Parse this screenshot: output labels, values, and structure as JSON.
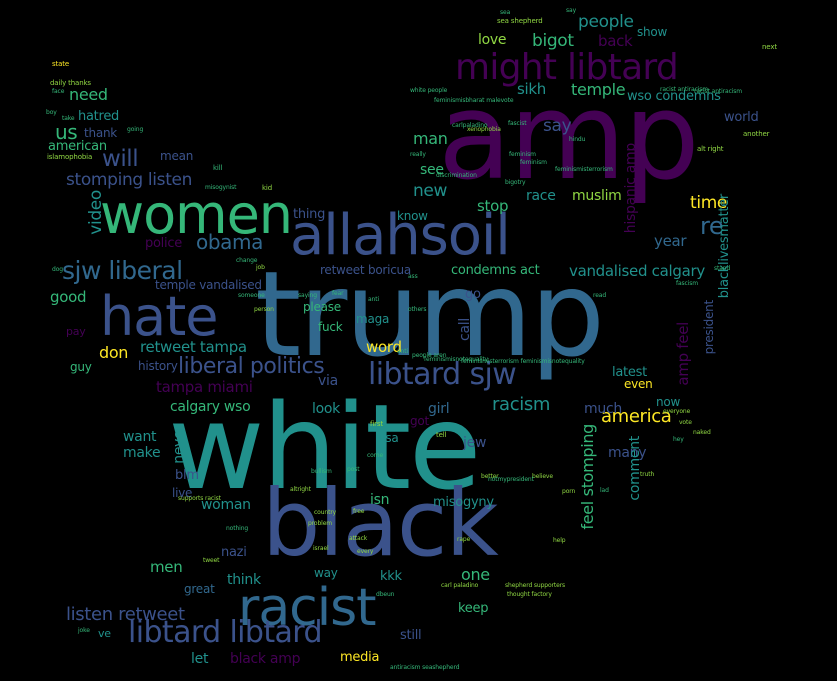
{
  "palette": {
    "background": "#000000",
    "purple": "#440154",
    "indigo": "#3b528b",
    "blue": "#31688e",
    "teal": "#21918c",
    "green": "#35b779",
    "lime": "#90d743",
    "yellow": "#fde725"
  },
  "cloud": {
    "words": [
      {
        "text": "amp",
        "color": "#440154"
      },
      {
        "text": "trump",
        "color": "#31688e"
      },
      {
        "text": "white",
        "color": "#21918c"
      },
      {
        "text": "black",
        "color": "#3b528b"
      },
      {
        "text": "racist",
        "color": "#31688e"
      },
      {
        "text": "allahsoil",
        "color": "#3b528b"
      },
      {
        "text": "women",
        "color": "#35b779"
      },
      {
        "text": "hate",
        "color": "#3b528b"
      },
      {
        "text": "might libtard",
        "color": "#440154"
      },
      {
        "text": "libtard libtard",
        "color": "#3b528b"
      },
      {
        "text": "sjw liberal",
        "color": "#31688e"
      },
      {
        "text": "libtard sjw",
        "color": "#3b528b"
      },
      {
        "text": "liberal politics",
        "color": "#3b528b"
      },
      {
        "text": "obama",
        "color": "#31688e"
      },
      {
        "text": "will",
        "color": "#3b528b"
      },
      {
        "text": "us",
        "color": "#35b779"
      },
      {
        "text": "stomping listen",
        "color": "#3b528b"
      },
      {
        "text": "listen retweet",
        "color": "#3b528b"
      },
      {
        "text": "retweet tampa",
        "color": "#21918c"
      },
      {
        "text": "tampa miami",
        "color": "#440154"
      },
      {
        "text": "re",
        "color": "#31688e"
      },
      {
        "text": "racism",
        "color": "#21918c"
      },
      {
        "text": "america",
        "color": "#fde725"
      },
      {
        "text": "say",
        "color": "#3b528b"
      },
      {
        "text": "people",
        "color": "#21918c"
      },
      {
        "text": "sikh",
        "color": "#21918c"
      },
      {
        "text": "temple",
        "color": "#35b779"
      },
      {
        "text": "bigot",
        "color": "#35b779"
      },
      {
        "text": "love",
        "color": "#90d743"
      },
      {
        "text": "back",
        "color": "#440154"
      },
      {
        "text": "show",
        "color": "#21918c"
      },
      {
        "text": "wso condemns",
        "color": "#21918c"
      },
      {
        "text": "world",
        "color": "#3b528b"
      },
      {
        "text": "man",
        "color": "#35b779"
      },
      {
        "text": "see",
        "color": "#35b779"
      },
      {
        "text": "new",
        "color": "#21918c"
      },
      {
        "text": "stop",
        "color": "#35b779"
      },
      {
        "text": "race",
        "color": "#21918c"
      },
      {
        "text": "muslim",
        "color": "#90d743"
      },
      {
        "text": "hispanic amp",
        "color": "#440154"
      },
      {
        "text": "time",
        "color": "#fde725"
      },
      {
        "text": "year",
        "color": "#31688e"
      },
      {
        "text": "blacklivesmatter",
        "color": "#21918c"
      },
      {
        "text": "need",
        "color": "#35b779"
      },
      {
        "text": "hatred",
        "color": "#21918c"
      },
      {
        "text": "american",
        "color": "#35b779"
      },
      {
        "text": "mean",
        "color": "#3b528b"
      },
      {
        "text": "thank",
        "color": "#3b528b"
      },
      {
        "text": "video",
        "color": "#21918c"
      },
      {
        "text": "thing",
        "color": "#3b528b"
      },
      {
        "text": "know",
        "color": "#21918c"
      },
      {
        "text": "police",
        "color": "#440154"
      },
      {
        "text": "retweet boricua",
        "color": "#3b528b"
      },
      {
        "text": "condemns act",
        "color": "#35b779"
      },
      {
        "text": "vandalised calgary",
        "color": "#21918c"
      },
      {
        "text": "temple vandalised",
        "color": "#3b528b"
      },
      {
        "text": "good",
        "color": "#35b779"
      },
      {
        "text": "pay",
        "color": "#440154"
      },
      {
        "text": "guy",
        "color": "#35b779"
      },
      {
        "text": "don",
        "color": "#fde725"
      },
      {
        "text": "history",
        "color": "#3b528b"
      },
      {
        "text": "go",
        "color": "#3b528b"
      },
      {
        "text": "please",
        "color": "#35b779"
      },
      {
        "text": "maga",
        "color": "#21918c"
      },
      {
        "text": "fuck",
        "color": "#35b779"
      },
      {
        "text": "call",
        "color": "#3b528b"
      },
      {
        "text": "word",
        "color": "#fde725"
      },
      {
        "text": "via",
        "color": "#3b528b"
      },
      {
        "text": "look",
        "color": "#21918c"
      },
      {
        "text": "girl",
        "color": "#31688e"
      },
      {
        "text": "got",
        "color": "#440154"
      },
      {
        "text": "much",
        "color": "#3b528b"
      },
      {
        "text": "amp feel",
        "color": "#440154"
      },
      {
        "text": "latest",
        "color": "#21918c"
      },
      {
        "text": "even",
        "color": "#fde725"
      },
      {
        "text": "now",
        "color": "#21918c"
      },
      {
        "text": "president",
        "color": "#3b528b"
      },
      {
        "text": "calgary wso",
        "color": "#35b779"
      },
      {
        "text": "want",
        "color": "#21918c"
      },
      {
        "text": "make",
        "color": "#21918c"
      },
      {
        "text": "never",
        "color": "#21918c"
      },
      {
        "text": "blm",
        "color": "#3b528b"
      },
      {
        "text": "live",
        "color": "#3b528b"
      },
      {
        "text": "woman",
        "color": "#21918c"
      },
      {
        "text": "jew",
        "color": "#3b528b"
      },
      {
        "text": "isn",
        "color": "#35b779"
      },
      {
        "text": "misogyny",
        "color": "#21918c"
      },
      {
        "text": "usa",
        "color": "#21918c"
      },
      {
        "text": "many",
        "color": "#3b528b"
      },
      {
        "text": "comment",
        "color": "#21918c"
      },
      {
        "text": "feel stomping",
        "color": "#35b779"
      },
      {
        "text": "nazi",
        "color": "#3b528b"
      },
      {
        "text": "men",
        "color": "#35b779"
      },
      {
        "text": "great",
        "color": "#31688e"
      },
      {
        "text": "think",
        "color": "#21918c"
      },
      {
        "text": "way",
        "color": "#21918c"
      },
      {
        "text": "kkk",
        "color": "#21918c"
      },
      {
        "text": "one",
        "color": "#35b779"
      },
      {
        "text": "keep",
        "color": "#35b779"
      },
      {
        "text": "ve",
        "color": "#21918c"
      },
      {
        "text": "let",
        "color": "#21918c"
      },
      {
        "text": "black amp",
        "color": "#440154"
      },
      {
        "text": "media",
        "color": "#fde725"
      },
      {
        "text": "still",
        "color": "#3b528b"
      },
      {
        "text": "state",
        "color": "#fde725"
      },
      {
        "text": "daily thanks",
        "color": "#90d743"
      },
      {
        "text": "islamophobia",
        "color": "#90d743"
      },
      {
        "text": "sea shepherd",
        "color": "#90d743"
      },
      {
        "text": "next",
        "color": "#90d743"
      },
      {
        "text": "alt right",
        "color": "#90d743"
      },
      {
        "text": "another",
        "color": "#90d743"
      },
      {
        "text": "white people",
        "color": "#35b779"
      },
      {
        "text": "racist antiracism",
        "color": "#35b779"
      },
      {
        "text": "xenophobia",
        "color": "#90d743"
      },
      {
        "text": "really",
        "color": "#35b779"
      },
      {
        "text": "kill",
        "color": "#35b779"
      },
      {
        "text": "kid",
        "color": "#90d743"
      },
      {
        "text": "misogynist",
        "color": "#35b779"
      },
      {
        "text": "first",
        "color": "#90d743"
      },
      {
        "text": "tell",
        "color": "#90d743"
      },
      {
        "text": "everyone",
        "color": "#90d743"
      },
      {
        "text": "vote",
        "color": "#90d743"
      },
      {
        "text": "naked",
        "color": "#90d743"
      },
      {
        "text": "truth",
        "color": "#90d743"
      },
      {
        "text": "better",
        "color": "#90d743"
      },
      {
        "text": "believe",
        "color": "#90d743"
      },
      {
        "text": "porn",
        "color": "#90d743"
      },
      {
        "text": "help",
        "color": "#90d743"
      },
      {
        "text": "rape",
        "color": "#90d743"
      },
      {
        "text": "attack",
        "color": "#90d743"
      },
      {
        "text": "every",
        "color": "#90d743"
      },
      {
        "text": "israel",
        "color": "#90d743"
      },
      {
        "text": "country",
        "color": "#90d743"
      },
      {
        "text": "problem",
        "color": "#90d743"
      },
      {
        "text": "free",
        "color": "#90d743"
      },
      {
        "text": "altright",
        "color": "#90d743"
      },
      {
        "text": "supports racist",
        "color": "#90d743"
      },
      {
        "text": "nothing",
        "color": "#35b779"
      },
      {
        "text": "tweet",
        "color": "#90d743"
      },
      {
        "text": "carl paladino",
        "color": "#90d743"
      },
      {
        "text": "thought factory",
        "color": "#90d743"
      },
      {
        "text": "shepherd supporters",
        "color": "#90d743"
      },
      {
        "text": "antiracism seashepherd",
        "color": "#35b779"
      },
      {
        "text": "joke",
        "color": "#35b779"
      },
      {
        "text": "person",
        "color": "#90d743"
      },
      {
        "text": "saying",
        "color": "#35b779"
      },
      {
        "text": "fear",
        "color": "#35b779"
      },
      {
        "text": "anti",
        "color": "#35b779"
      },
      {
        "text": "others",
        "color": "#35b779"
      },
      {
        "text": "ass",
        "color": "#35b779"
      },
      {
        "text": "job",
        "color": "#90d743"
      },
      {
        "text": "change",
        "color": "#35b779"
      },
      {
        "text": "someone",
        "color": "#35b779"
      },
      {
        "text": "read",
        "color": "#35b779"
      },
      {
        "text": "fascism",
        "color": "#35b779"
      },
      {
        "text": "stand",
        "color": "#35b779"
      },
      {
        "text": "feminismisterrorism",
        "color": "#35b779"
      },
      {
        "text": "feminismisnotequality",
        "color": "#35b779"
      },
      {
        "text": "notmypresident",
        "color": "#35b779"
      },
      {
        "text": "face",
        "color": "#35b779"
      },
      {
        "text": "boy",
        "color": "#35b779"
      },
      {
        "text": "take",
        "color": "#35b779"
      },
      {
        "text": "going",
        "color": "#35b779"
      },
      {
        "text": "racist antiracism",
        "color": "#35b779"
      },
      {
        "text": "hey",
        "color": "#35b779"
      },
      {
        "text": "bullism",
        "color": "#35b779"
      },
      {
        "text": "post",
        "color": "#35b779"
      },
      {
        "text": "come",
        "color": "#35b779"
      },
      {
        "text": "feminismisterrorism feminismisnotequality",
        "color": "#35b779"
      },
      {
        "text": "feminism",
        "color": "#35b779"
      },
      {
        "text": "people aren",
        "color": "#35b779"
      },
      {
        "text": "discrimination",
        "color": "#35b779"
      },
      {
        "text": "feminism",
        "color": "#35b779"
      },
      {
        "text": "carlpaladino",
        "color": "#35b779"
      },
      {
        "text": "fascist",
        "color": "#35b779"
      },
      {
        "text": "feminismisbharat malevote",
        "color": "#35b779"
      },
      {
        "text": "bigotry",
        "color": "#35b779"
      },
      {
        "text": "hindu",
        "color": "#35b779"
      },
      {
        "text": "anti",
        "color": "#35b779"
      },
      {
        "text": "dbeun",
        "color": "#35b779"
      },
      {
        "text": "lad",
        "color": "#35b779"
      },
      {
        "text": "dog",
        "color": "#35b779"
      },
      {
        "text": "say",
        "color": "#35b779"
      },
      {
        "text": "sea",
        "color": "#35b779"
      }
    ]
  }
}
